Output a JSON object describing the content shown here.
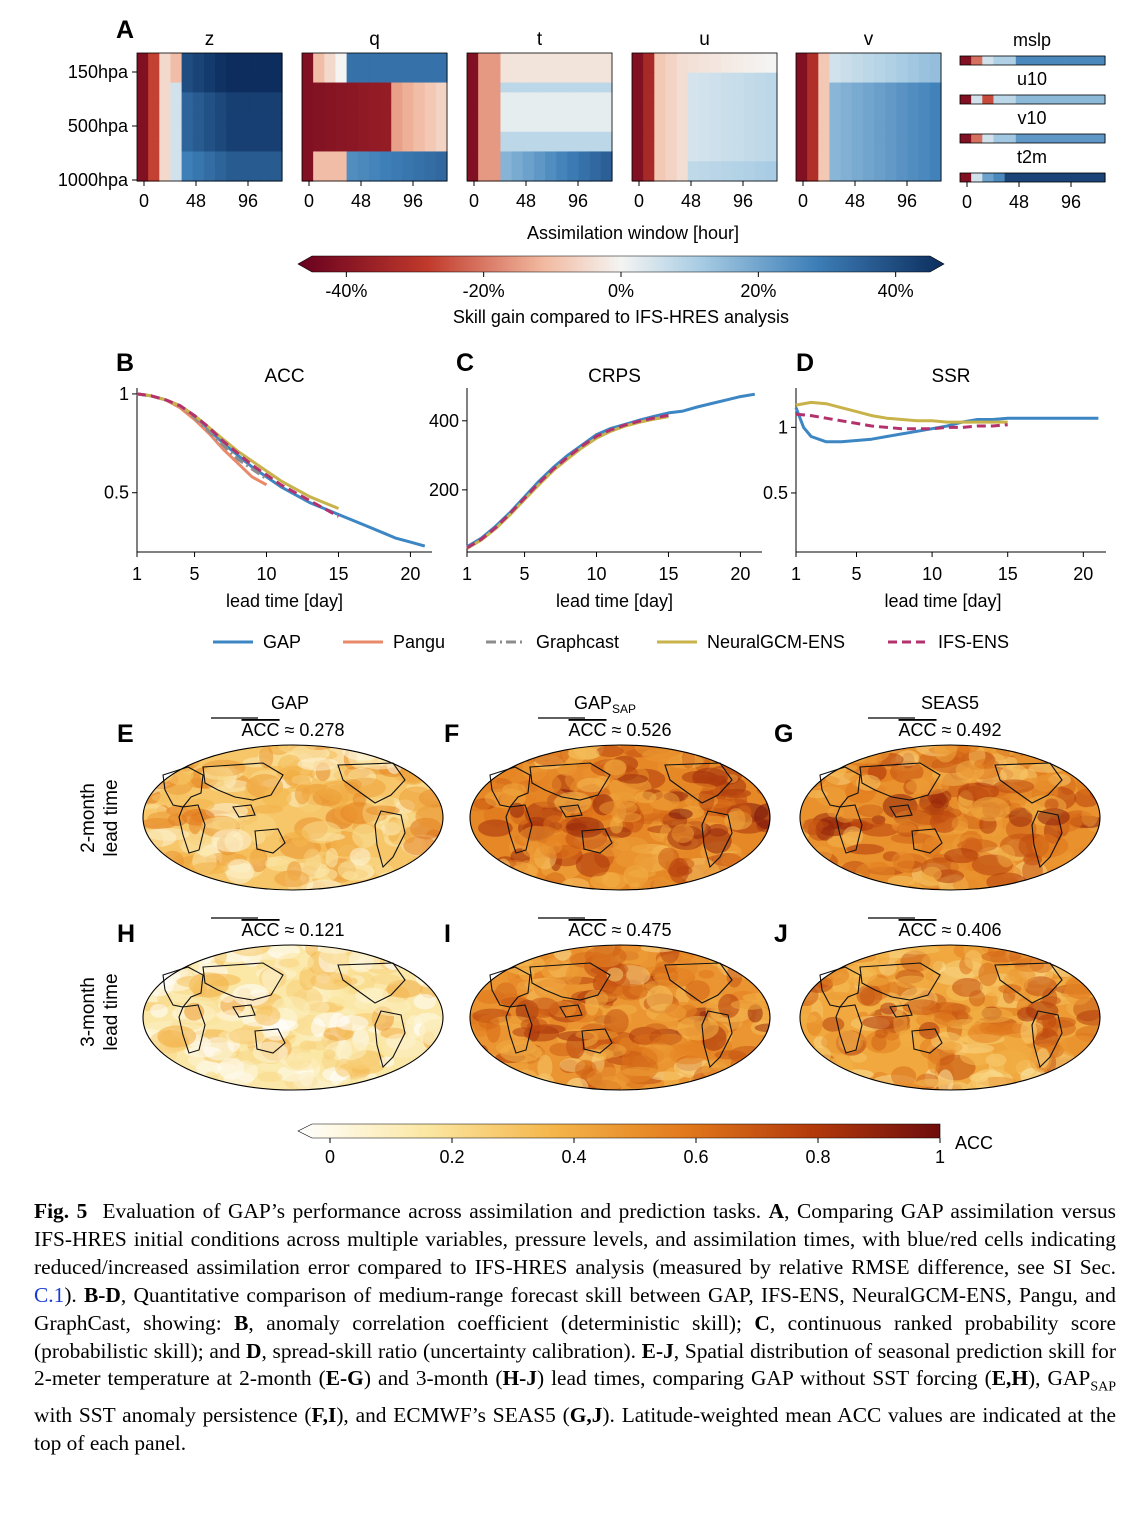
{
  "figure": {
    "panel_letters": [
      "A",
      "B",
      "C",
      "D",
      "E",
      "F",
      "G",
      "H",
      "I",
      "J"
    ],
    "colors": {
      "GAP": "#3d86c4",
      "Pangu": "#e8896a",
      "Graphcast": "#8c8c8c",
      "NeuralGCM-ENS": "#c8b24a",
      "IFS-ENS": "#b3326e",
      "div_neg_dark": "#67001f",
      "div_neg": "#d6604d",
      "div_mid": "#f4f4f2",
      "div_pos": "#6aa4d0",
      "div_pos_dark": "#0c2d5e",
      "seq_low": "#ffffff",
      "seq_mid": "#f2a43a",
      "seq_high": "#6e0c0c"
    }
  },
  "chart_data": [
    {
      "panel": "A",
      "type": "heatmap",
      "subplots": [
        {
          "name": "z",
          "ylabels": [
            "150hpa",
            "500hpa",
            "1000hpa"
          ],
          "xticks": [
            "0",
            "48",
            "96"
          ]
        },
        {
          "name": "q",
          "xticks": [
            "0",
            "48",
            "96"
          ]
        },
        {
          "name": "t",
          "xticks": [
            "0",
            "48",
            "96"
          ]
        },
        {
          "name": "u",
          "xticks": [
            "0",
            "48",
            "96"
          ]
        },
        {
          "name": "v",
          "xticks": [
            "0",
            "48",
            "96"
          ]
        }
      ],
      "single_level": [
        "mslp",
        "u10",
        "v10",
        "t2m"
      ],
      "single_level_xticks": [
        "0",
        "48",
        "96"
      ],
      "xlabel": "Assimilation window [hour]",
      "colorbar": {
        "ticks": [
          "-40%",
          "-20%",
          "0%",
          "20%",
          "40%"
        ],
        "values": [
          -40,
          -20,
          0,
          20,
          40
        ],
        "range": [
          -45,
          45
        ],
        "label": "Skill gain compared to IFS-HRES analysis"
      }
    },
    {
      "panel": "B",
      "type": "line",
      "title": "ACC",
      "xlabel": "lead time [day]",
      "xticks": [
        1,
        5,
        10,
        15,
        20
      ],
      "yticks": [
        0.5,
        1
      ],
      "ytick_labels": [
        "0.5",
        "1"
      ],
      "xlim": [
        1,
        21.5
      ],
      "ylim": [
        0.2,
        1.03
      ],
      "series": [
        {
          "name": "GAP",
          "style": "solid",
          "x": [
            1,
            2,
            3,
            4,
            5,
            6,
            7,
            8,
            9,
            10,
            11,
            12,
            13,
            14,
            15,
            16,
            17,
            18,
            19,
            20,
            21
          ],
          "y": [
            1.0,
            0.99,
            0.97,
            0.94,
            0.89,
            0.82,
            0.75,
            0.69,
            0.63,
            0.58,
            0.53,
            0.49,
            0.45,
            0.42,
            0.39,
            0.36,
            0.33,
            0.3,
            0.27,
            0.25,
            0.23
          ]
        },
        {
          "name": "Pangu",
          "style": "solid",
          "x": [
            1,
            2,
            3,
            4,
            5,
            6,
            7,
            8,
            9,
            10
          ],
          "y": [
            1.0,
            0.99,
            0.97,
            0.93,
            0.87,
            0.8,
            0.72,
            0.65,
            0.58,
            0.54
          ]
        },
        {
          "name": "Graphcast",
          "style": "dashdot",
          "x": [
            1,
            2,
            3,
            4,
            5,
            6,
            7,
            8,
            9,
            10
          ],
          "y": [
            1.0,
            0.99,
            0.97,
            0.94,
            0.88,
            0.81,
            0.74,
            0.67,
            0.62,
            0.57
          ]
        },
        {
          "name": "NeuralGCM-ENS",
          "style": "solid",
          "x": [
            1,
            2,
            3,
            4,
            5,
            6,
            7,
            8,
            9,
            10,
            11,
            12,
            13,
            14,
            15
          ],
          "y": [
            1.0,
            0.99,
            0.97,
            0.94,
            0.89,
            0.83,
            0.77,
            0.71,
            0.66,
            0.61,
            0.56,
            0.52,
            0.48,
            0.45,
            0.42
          ]
        },
        {
          "name": "IFS-ENS",
          "style": "dashed",
          "x": [
            1,
            2,
            3,
            4,
            5,
            6,
            7,
            8,
            9,
            10,
            11,
            12,
            13,
            14,
            15
          ],
          "y": [
            1.0,
            0.99,
            0.97,
            0.94,
            0.89,
            0.83,
            0.76,
            0.7,
            0.64,
            0.59,
            0.54,
            0.5,
            0.46,
            0.42,
            0.38
          ]
        }
      ]
    },
    {
      "panel": "C",
      "type": "line",
      "title": "CRPS",
      "xlabel": "lead time [day]",
      "xticks": [
        1,
        5,
        10,
        15,
        20
      ],
      "yticks": [
        200,
        400
      ],
      "ytick_labels": [
        "200",
        "400"
      ],
      "xlim": [
        1,
        21.5
      ],
      "ylim": [
        20,
        495
      ],
      "series": [
        {
          "name": "GAP",
          "style": "solid",
          "x": [
            1,
            2,
            3,
            4,
            5,
            6,
            7,
            8,
            9,
            10,
            11,
            12,
            13,
            14,
            15,
            16,
            17,
            18,
            19,
            20,
            21
          ],
          "y": [
            35,
            60,
            95,
            135,
            180,
            225,
            265,
            300,
            330,
            360,
            378,
            390,
            402,
            413,
            423,
            428,
            440,
            450,
            460,
            470,
            477
          ]
        },
        {
          "name": "NeuralGCM-ENS",
          "style": "solid",
          "x": [
            1,
            2,
            3,
            4,
            5,
            6,
            7,
            8,
            9,
            10,
            11,
            12,
            13,
            14,
            15
          ],
          "y": [
            30,
            55,
            88,
            128,
            172,
            215,
            256,
            290,
            322,
            350,
            370,
            385,
            396,
            405,
            412
          ]
        },
        {
          "name": "IFS-ENS",
          "style": "dashed",
          "x": [
            1,
            2,
            3,
            4,
            5,
            6,
            7,
            8,
            9,
            10,
            11,
            12,
            13,
            14,
            15
          ],
          "y": [
            32,
            57,
            91,
            132,
            176,
            220,
            260,
            295,
            327,
            355,
            374,
            388,
            399,
            408,
            416
          ]
        }
      ]
    },
    {
      "panel": "D",
      "type": "line",
      "title": "SSR",
      "xlabel": "lead time [day]",
      "xticks": [
        1,
        5,
        10,
        15,
        20
      ],
      "yticks": [
        0.5,
        1
      ],
      "ytick_labels": [
        "0.5",
        "1"
      ],
      "xlim": [
        1,
        21.5
      ],
      "ylim": [
        0.05,
        1.3
      ],
      "series": [
        {
          "name": "GAP",
          "style": "solid",
          "x": [
            1,
            1.5,
            2,
            3,
            4,
            5,
            6,
            7,
            8,
            9,
            10,
            11,
            12,
            13,
            14,
            15,
            16,
            17,
            18,
            19,
            20,
            21
          ],
          "y": [
            1.15,
            1.0,
            0.93,
            0.89,
            0.89,
            0.9,
            0.91,
            0.93,
            0.95,
            0.97,
            0.99,
            1.01,
            1.04,
            1.06,
            1.06,
            1.07,
            1.07,
            1.07,
            1.07,
            1.07,
            1.07,
            1.07
          ]
        },
        {
          "name": "NeuralGCM-ENS",
          "style": "solid",
          "x": [
            1,
            2,
            3,
            4,
            5,
            6,
            7,
            8,
            9,
            10,
            11,
            12,
            13,
            14,
            15
          ],
          "y": [
            1.17,
            1.19,
            1.18,
            1.15,
            1.12,
            1.09,
            1.07,
            1.06,
            1.05,
            1.05,
            1.04,
            1.04,
            1.04,
            1.04,
            1.04
          ]
        },
        {
          "name": "IFS-ENS",
          "style": "dashed",
          "x": [
            1,
            2,
            3,
            4,
            5,
            6,
            7,
            8,
            9,
            10,
            11,
            12,
            13,
            14,
            15
          ],
          "y": [
            1.1,
            1.09,
            1.07,
            1.05,
            1.03,
            1.01,
            1.0,
            0.99,
            0.99,
            0.99,
            1.0,
            1.0,
            1.01,
            1.01,
            1.02
          ]
        }
      ]
    },
    {
      "panel": "E-J",
      "type": "heatmap",
      "row_labels": [
        "2-month\nlead time",
        "3-month\nlead time"
      ],
      "column_titles": [
        "GAP",
        "GAP_SAP",
        "SEAS5"
      ],
      "maps": [
        {
          "panel": "E",
          "mean_acc_label": "ACC",
          "mean_acc": "≈ 0.278"
        },
        {
          "panel": "F",
          "mean_acc_label": "ACC",
          "mean_acc": "≈ 0.526"
        },
        {
          "panel": "G",
          "mean_acc_label": "ACC",
          "mean_acc": "≈ 0.492"
        },
        {
          "panel": "H",
          "mean_acc_label": "ACC",
          "mean_acc": "≈ 0.121"
        },
        {
          "panel": "I",
          "mean_acc_label": "ACC",
          "mean_acc": "≈ 0.475"
        },
        {
          "panel": "J",
          "mean_acc_label": "ACC",
          "mean_acc": "≈ 0.406"
        }
      ],
      "colorbar": {
        "ticks": [
          "0",
          "0.2",
          "0.4",
          "0.6",
          "0.8",
          "1"
        ],
        "values": [
          0,
          0.2,
          0.4,
          0.6,
          0.8,
          1
        ],
        "label": "ACC"
      }
    }
  ],
  "caption": {
    "label": "Fig. 5",
    "text_1": "Evaluation of GAP’s performance across assimilation and prediction tasks.",
    "A": "A",
    "text_2": ", Comparing GAP assimilation versus IFS-HRES initial conditions across multiple variables, pressure levels, and assimilation times, with blue/red cells indicating reduced/increased assimilation error compared to IFS-HRES analysis (measured by relative RMSE difference, see SI Sec.",
    "ref": "C.1",
    "text_3": ").",
    "BD": "B-D",
    "text_4": ", Quantitative comparison of medium-range forecast skill between GAP, IFS-ENS, NeuralGCM-ENS, Pangu, and GraphCast, showing:",
    "B": "B",
    "text_5": ", anomaly correlation coefficient (deterministic skill);",
    "C": "C",
    "text_6": ", continuous ranked probability score (probabilistic skill); and",
    "D": "D",
    "text_7": ", spread-skill ratio (uncertainty calibration).",
    "EJ": "E-J",
    "text_8": ", Spatial distribution of seasonal prediction skill for 2-meter temperature at 2-month (",
    "EG": "E-G",
    "text_9": ") and 3-month (",
    "HJ": "H-J",
    "text_10": ") lead times, comparing GAP without SST forcing (",
    "EH": "E,H",
    "text_11": "), GAP",
    "sap": "SAP",
    "text_12": " with SST anomaly persistence (",
    "FI": "F,I",
    "text_13": "), and ECMWF’s SEAS5 (",
    "GJ": "G,J",
    "text_14": "). Latitude-weighted mean ACC values are indicated at the top of each panel."
  }
}
